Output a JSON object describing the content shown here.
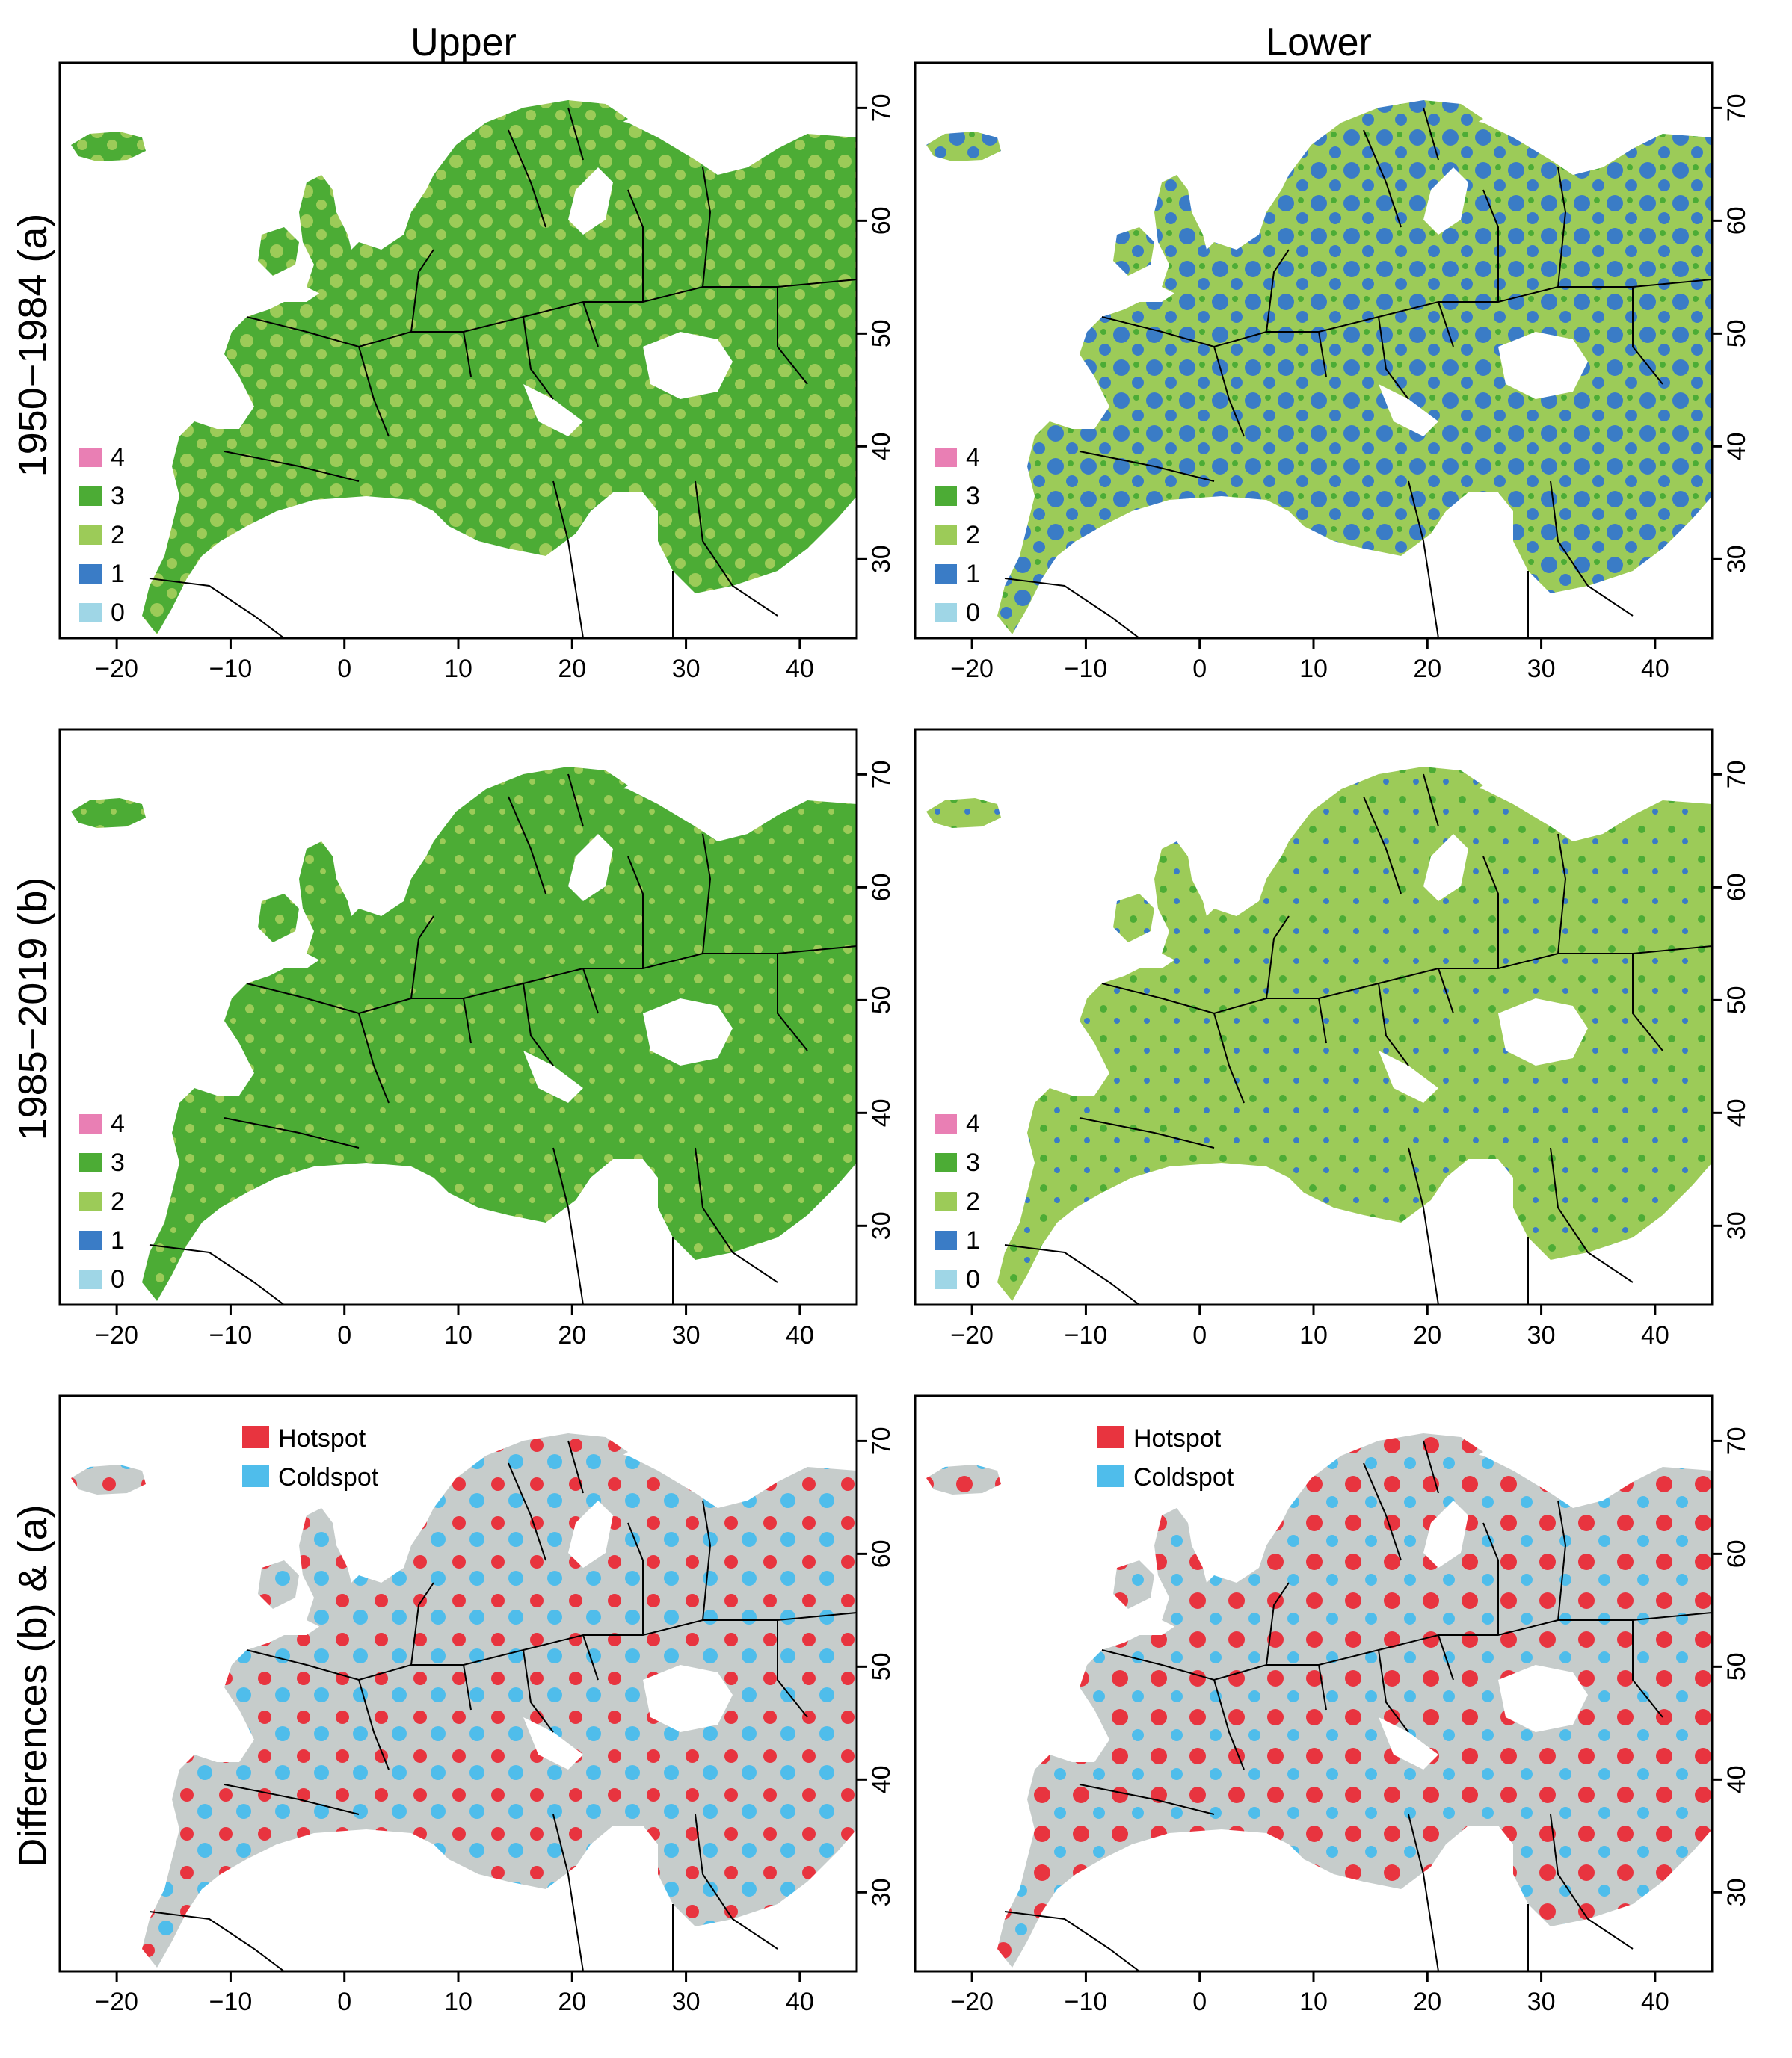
{
  "columns": [
    "Upper",
    "Lower"
  ],
  "rows": [
    "1950−1984 (a)",
    "1985−2019 (b)",
    "Differences (b) & (a)"
  ],
  "x_ticks": [
    "−20",
    "−10",
    "0",
    "10",
    "20",
    "30",
    "40"
  ],
  "y_ticks": [
    "30",
    "40",
    "50",
    "60",
    "70"
  ],
  "class_legend": [
    {
      "label": "4",
      "color": "#e97fb4"
    },
    {
      "label": "3",
      "color": "#4cac35"
    },
    {
      "label": "2",
      "color": "#9ccb58"
    },
    {
      "label": "1",
      "color": "#3a7cc6"
    },
    {
      "label": "0",
      "color": "#9fd6e6"
    }
  ],
  "diff_legend": [
    {
      "label": "Hotspot",
      "color": "#e8343f"
    },
    {
      "label": "Coldspot",
      "color": "#4fbdeb"
    }
  ],
  "colors": {
    "land_neutral": "#c6cccb",
    "border": "#000000",
    "sea": "#ffffff"
  }
}
